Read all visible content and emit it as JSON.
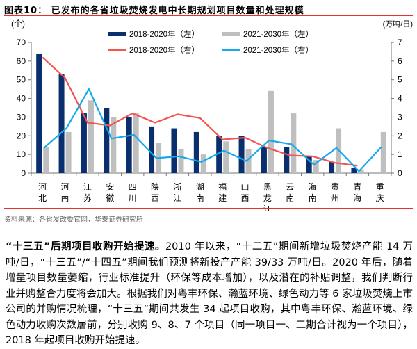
{
  "figure_title": "图表10：  已发布的各省垃圾焚烧发电中长期规划项目数量和处理规模",
  "source": "资料来源：各省发改委官网，华泰证券研究所",
  "paragraph": {
    "lead": "“十三五”后期项目收购开始提速。",
    "body": "2010 年以来，“十二五”期间新增垃圾焚烧产能 14 万吨/日，“十三五”/“十四五”期间我们预测将新投产产能 39/33 万吨/日。2020 年后，随着增量项目数量萎缩，行业标准提升（环保等成本增加），以及潜在的补贴调整，我们判断行业并购整合力度将会加大。根据我们对粤丰环保、瀚蓝环境、绿色动力等 6 家垃圾焚烧上市公司的并购情况梳理，“十三五”期间共发生 34 起项目收购，其中粤丰环保、瀚蓝环境、绿色动力收购次数居前，分别收购 9、8、7 个项目（同一项目一、二期合计视为一个项目），2018 年起项目收购开始提速。"
  },
  "chart_data": {
    "type": "bar+line",
    "left_axis_label": "(个)",
    "right_axis_label": "(万吨/日)",
    "ylim_left": [
      0,
      70
    ],
    "ylim_right": [
      0,
      7
    ],
    "left_ticks": [
      "0",
      "10",
      "20",
      "30",
      "40",
      "50",
      "60",
      "70"
    ],
    "right_ticks": [
      "0",
      "1",
      "2",
      "3",
      "4",
      "5",
      "6",
      "7"
    ],
    "grid": false,
    "legend_position": "top",
    "categories": [
      "河北",
      "河南",
      "江苏",
      "安徽",
      "四川",
      "陕西",
      "浙江",
      "湖南",
      "福建",
      "山西",
      "黑龙江",
      "云南",
      "海南",
      "贵州",
      "青海",
      "重庆"
    ],
    "series": [
      {
        "name": "2018-2020年（左）",
        "kind": "bar",
        "axis": "left",
        "color": "#0a2f6e",
        "values": [
          64,
          53,
          32,
          35,
          30,
          25,
          24,
          22,
          20,
          20,
          14,
          14,
          9,
          6,
          3,
          null
        ]
      },
      {
        "name": "2021-2030年（左）",
        "kind": "bar",
        "axis": "left",
        "color": "#bfbfbf",
        "values": [
          14,
          22,
          39,
          30,
          32,
          16,
          13,
          10,
          17,
          13,
          44,
          32,
          7,
          24,
          2,
          22
        ]
      },
      {
        "name": "2018-2020年（右）",
        "kind": "line",
        "axis": "right",
        "color": "#f4534f",
        "values": [
          6.2,
          5.1,
          2.7,
          2.55,
          3.2,
          2.7,
          3.15,
          2.95,
          1.8,
          1.9,
          1.35,
          0.95,
          0.9,
          0.55,
          0.4,
          null
        ]
      },
      {
        "name": "2021-2030年（右）",
        "kind": "line",
        "axis": "right",
        "color": "#14a9ec",
        "values": [
          1.35,
          2.4,
          4.5,
          1.85,
          2.05,
          0.8,
          0.9,
          0.6,
          1.2,
          0.65,
          1.75,
          1.55,
          0.45,
          1.35,
          0.1,
          1.4
        ]
      }
    ]
  }
}
